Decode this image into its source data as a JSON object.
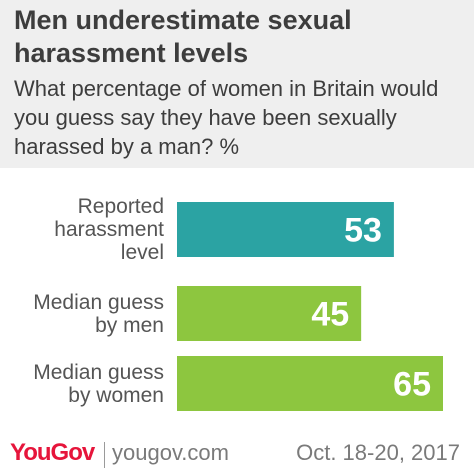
{
  "title": "Men underestimate sexual harassment levels",
  "subtitle": "What percentage of women in Britain would you guess say they have been sexually harassed by a man? %",
  "chart_data": {
    "type": "bar",
    "orientation": "horizontal",
    "title": "Men underestimate sexual harassment levels",
    "subtitle": "What percentage of women in Britain would you guess say they have been sexually harassed by a man? %",
    "categories": [
      "Reported harassment level",
      "Median guess by men",
      "Median guess by women"
    ],
    "values": [
      53,
      45,
      65
    ],
    "colors": [
      "#2ba3a3",
      "#8dc63f",
      "#8dc63f"
    ],
    "data_labels": [
      "53",
      "45",
      "65"
    ],
    "xlim": [
      0,
      65
    ],
    "grid": false,
    "legend": "none"
  },
  "footer": {
    "logo": "YouGov",
    "website": "yougov.com",
    "date": "Oct. 18-20, 2017"
  },
  "colors": {
    "brand": "#e6153b",
    "header_bg": "#efefef"
  }
}
